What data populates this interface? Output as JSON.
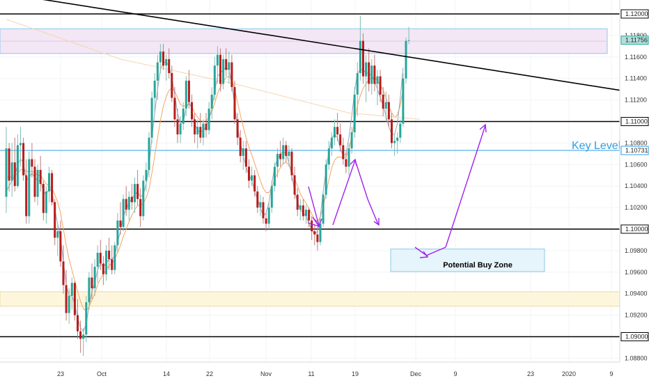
{
  "chart_data": {
    "type": "candlestick",
    "title": "",
    "y_axis": {
      "range": [
        1.0875,
        1.1208
      ],
      "tick_labels": [
        "1.12000",
        "1.11800",
        "1.11600",
        "1.11400",
        "1.11200",
        "1.11000",
        "1.10800",
        "1.10600",
        "1.10400",
        "1.10200",
        "1.10000",
        "1.09800",
        "1.09600",
        "1.09400",
        "1.09200",
        "1.09000",
        "1.08800"
      ]
    },
    "x_axis": {
      "tick_labels": [
        "23",
        "Oct",
        "14",
        "22",
        "Nov",
        "11",
        "19",
        "Dec",
        "9",
        "23",
        "2020",
        "9"
      ]
    },
    "horizontal_levels": [
      {
        "price": 1.12,
        "label": "1.12000",
        "color": "#000000"
      },
      {
        "price": 1.11,
        "label": "1.11000",
        "color": "#000000"
      },
      {
        "price": 1.1,
        "label": "1.10000",
        "color": "#000000"
      },
      {
        "price": 1.09,
        "label": "1.09000",
        "color": "#000000"
      },
      {
        "price": 1.10731,
        "label": "1.10731",
        "color": "#2f9ee6"
      }
    ],
    "current_price": {
      "price": 1.11756,
      "label": "1.11756",
      "color": "#26a69a"
    },
    "annotations": {
      "key_level": "Key Level",
      "buy_zone": "Potential Buy Zone"
    },
    "zones": [
      {
        "name": "resistance-zone",
        "top": 1.11862,
        "bottom": 1.11632,
        "color": "#f3e6f5"
      },
      {
        "name": "support-zone",
        "top": 1.09418,
        "bottom": 1.09283,
        "color": "#fdf6dc"
      },
      {
        "name": "potential-buy-zone",
        "top": 1.09815,
        "bottom": 1.09605,
        "color": "#e6f4fb"
      }
    ],
    "trendline": {
      "from": [
        0,
        1.12111
      ],
      "to": [
        186,
        1.11291
      ]
    },
    "candles": [
      [
        1.103,
        1.1095,
        1.1015,
        1.1075
      ],
      [
        1.1075,
        1.108,
        1.1035,
        1.1045
      ],
      [
        1.1045,
        1.108,
        1.103,
        1.1062
      ],
      [
        1.1062,
        1.1085,
        1.1035,
        1.104
      ],
      [
        1.104,
        1.1088,
        1.1038,
        1.1078
      ],
      [
        1.1078,
        1.1095,
        1.1058,
        1.108
      ],
      [
        1.108,
        1.1085,
        1.1045,
        1.105
      ],
      [
        1.105,
        1.1065,
        1.1005,
        1.1012
      ],
      [
        1.1012,
        1.1072,
        1.1005,
        1.1065
      ],
      [
        1.1065,
        1.108,
        1.1048,
        1.1058
      ],
      [
        1.1058,
        1.1065,
        1.1025,
        1.103
      ],
      [
        1.103,
        1.106,
        1.1022,
        1.1055
      ],
      [
        1.1055,
        1.1068,
        1.1035,
        1.1042
      ],
      [
        1.1042,
        1.1045,
        1.1008,
        1.1015
      ],
      [
        1.1015,
        1.104,
        1.1005,
        1.1035
      ],
      [
        1.1035,
        1.1058,
        1.1025,
        1.1052
      ],
      [
        1.1052,
        1.1055,
        1.1022,
        1.1025
      ],
      [
        1.1025,
        1.1028,
        1.0985,
        1.0992
      ],
      [
        1.0992,
        1.1005,
        1.0975,
        1.0998
      ],
      [
        1.0998,
        1.1008,
        1.0965,
        1.097
      ],
      [
        1.097,
        1.0985,
        1.094,
        1.0948
      ],
      [
        1.0948,
        1.0962,
        1.0915,
        1.0922
      ],
      [
        1.0922,
        1.0945,
        1.0912,
        1.0938
      ],
      [
        1.0938,
        1.0955,
        1.0925,
        1.095
      ],
      [
        1.095,
        1.0952,
        1.0915,
        1.092
      ],
      [
        1.092,
        1.0935,
        1.0898,
        1.0905
      ],
      [
        1.0905,
        1.0915,
        1.0885,
        1.0898
      ],
      [
        1.0898,
        1.0908,
        1.0882,
        1.0902
      ],
      [
        1.0902,
        1.0938,
        1.0895,
        1.0932
      ],
      [
        1.0932,
        1.096,
        1.0925,
        1.0955
      ],
      [
        1.0955,
        1.0968,
        1.0935,
        1.0945
      ],
      [
        1.0945,
        1.0972,
        1.0938,
        1.0965
      ],
      [
        1.0965,
        1.0985,
        1.095,
        1.0978
      ],
      [
        1.0978,
        1.099,
        1.0962,
        1.0968
      ],
      [
        1.0968,
        1.0975,
        1.0948,
        1.0958
      ],
      [
        1.0958,
        1.0985,
        1.0952,
        1.098
      ],
      [
        1.098,
        1.0992,
        1.0962,
        1.0972
      ],
      [
        1.0972,
        1.0985,
        1.0958,
        1.0962
      ],
      [
        1.0962,
        1.0988,
        1.0958,
        1.0985
      ],
      [
        1.0985,
        1.1015,
        1.0978,
        1.1008
      ],
      [
        1.1008,
        1.1025,
        1.0995,
        1.1002
      ],
      [
        1.1002,
        1.1032,
        1.0998,
        1.1028
      ],
      [
        1.1028,
        1.104,
        1.1012,
        1.1018
      ],
      [
        1.1018,
        1.1035,
        1.1008,
        1.103
      ],
      [
        1.103,
        1.1042,
        1.1018,
        1.1025
      ],
      [
        1.1025,
        1.1048,
        1.1015,
        1.1042
      ],
      [
        1.1042,
        1.1055,
        1.1022,
        1.1028
      ],
      [
        1.1028,
        1.1038,
        1.1002,
        1.1012
      ],
      [
        1.1012,
        1.105,
        1.1008,
        1.1045
      ],
      [
        1.1045,
        1.1062,
        1.1035,
        1.1055
      ],
      [
        1.1055,
        1.109,
        1.1048,
        1.1085
      ],
      [
        1.1085,
        1.1128,
        1.108,
        1.1122
      ],
      [
        1.1122,
        1.1145,
        1.1108,
        1.1138
      ],
      [
        1.1138,
        1.1162,
        1.112,
        1.1155
      ],
      [
        1.1155,
        1.1172,
        1.1145,
        1.1165
      ],
      [
        1.1165,
        1.1172,
        1.1148,
        1.1152
      ],
      [
        1.1152,
        1.1162,
        1.1138,
        1.1158
      ],
      [
        1.1158,
        1.1168,
        1.114,
        1.1145
      ],
      [
        1.1145,
        1.1152,
        1.1118,
        1.1122
      ],
      [
        1.1122,
        1.1132,
        1.1095,
        1.1102
      ],
      [
        1.1102,
        1.1112,
        1.108,
        1.1088
      ],
      [
        1.1088,
        1.1105,
        1.108,
        1.1098
      ],
      [
        1.1098,
        1.1118,
        1.1092,
        1.1112
      ],
      [
        1.1112,
        1.1142,
        1.1105,
        1.1138
      ],
      [
        1.1138,
        1.1148,
        1.1112,
        1.1118
      ],
      [
        1.1118,
        1.1125,
        1.1095,
        1.1102
      ],
      [
        1.1102,
        1.1108,
        1.108,
        1.1088
      ],
      [
        1.1088,
        1.1102,
        1.1075,
        1.1095
      ],
      [
        1.1095,
        1.1108,
        1.108,
        1.1085
      ],
      [
        1.1085,
        1.1102,
        1.1078,
        1.1098
      ],
      [
        1.1098,
        1.1108,
        1.1085,
        1.1092
      ],
      [
        1.1092,
        1.1118,
        1.1088,
        1.1112
      ],
      [
        1.1112,
        1.1132,
        1.1102,
        1.1125
      ],
      [
        1.1125,
        1.116,
        1.112,
        1.1152
      ],
      [
        1.1152,
        1.117,
        1.1135,
        1.1162
      ],
      [
        1.1162,
        1.1168,
        1.1128,
        1.1135
      ],
      [
        1.1135,
        1.1162,
        1.113,
        1.1158
      ],
      [
        1.1158,
        1.1168,
        1.1142,
        1.1148
      ],
      [
        1.1148,
        1.1165,
        1.1135,
        1.1155
      ],
      [
        1.1155,
        1.1162,
        1.1128,
        1.1132
      ],
      [
        1.1132,
        1.1138,
        1.1098,
        1.1102
      ],
      [
        1.1102,
        1.1108,
        1.1078,
        1.1085
      ],
      [
        1.1085,
        1.1092,
        1.1062,
        1.1068
      ],
      [
        1.1068,
        1.1082,
        1.1055,
        1.1075
      ],
      [
        1.1075,
        1.1082,
        1.1052,
        1.1058
      ],
      [
        1.1058,
        1.1065,
        1.1038,
        1.1045
      ],
      [
        1.1045,
        1.1058,
        1.104,
        1.105
      ],
      [
        1.105,
        1.1055,
        1.103,
        1.1035
      ],
      [
        1.1035,
        1.104,
        1.1015,
        1.102
      ],
      [
        1.102,
        1.1032,
        1.1012,
        1.1025
      ],
      [
        1.1025,
        1.103,
        1.1005,
        1.101
      ],
      [
        1.101,
        1.1015,
        1.0998,
        1.1005
      ],
      [
        1.1005,
        1.1025,
        1.1,
        1.102
      ],
      [
        1.102,
        1.1045,
        1.1015,
        1.104
      ],
      [
        1.104,
        1.1062,
        1.1035,
        1.1058
      ],
      [
        1.1058,
        1.1075,
        1.1048,
        1.107
      ],
      [
        1.107,
        1.1082,
        1.1058,
        1.1065
      ],
      [
        1.1065,
        1.1085,
        1.106,
        1.1078
      ],
      [
        1.1078,
        1.1082,
        1.1062,
        1.1068
      ],
      [
        1.1068,
        1.1078,
        1.1058,
        1.1072
      ],
      [
        1.1072,
        1.1075,
        1.1045,
        1.105
      ],
      [
        1.105,
        1.1058,
        1.1028,
        1.1032
      ],
      [
        1.1032,
        1.1038,
        1.1012,
        1.1018
      ],
      [
        1.1018,
        1.1028,
        1.1008,
        1.1022
      ],
      [
        1.1022,
        1.1028,
        1.1008,
        1.1012
      ],
      [
        1.1012,
        1.1022,
        1.1005,
        1.1018
      ],
      [
        1.1018,
        1.102,
        1.1002,
        1.1008
      ],
      [
        1.1008,
        1.1012,
        1.099,
        1.0998
      ],
      [
        1.0998,
        1.1005,
        1.0985,
        1.0995
      ],
      [
        1.0995,
        1.1002,
        1.098,
        1.0988
      ],
      [
        1.0988,
        1.101,
        1.0985,
        1.1005
      ],
      [
        1.1005,
        1.1035,
        1.1002,
        1.1032
      ],
      [
        1.1032,
        1.1065,
        1.1028,
        1.106
      ],
      [
        1.106,
        1.1082,
        1.1055,
        1.1075
      ],
      [
        1.1075,
        1.109,
        1.1068,
        1.1085
      ],
      [
        1.1085,
        1.1102,
        1.1078,
        1.1095
      ],
      [
        1.1095,
        1.1108,
        1.1082,
        1.1088
      ],
      [
        1.1088,
        1.1098,
        1.1072,
        1.1078
      ],
      [
        1.1078,
        1.1085,
        1.106,
        1.1065
      ],
      [
        1.1065,
        1.1072,
        1.1052,
        1.1058
      ],
      [
        1.1058,
        1.108,
        1.105,
        1.1075
      ],
      [
        1.1075,
        1.1095,
        1.107,
        1.109
      ],
      [
        1.109,
        1.1132,
        1.1085,
        1.1125
      ],
      [
        1.1125,
        1.1155,
        1.1105,
        1.1145
      ],
      [
        1.1145,
        1.1198,
        1.1138,
        1.1175
      ],
      [
        1.1175,
        1.1182,
        1.1135,
        1.1142
      ],
      [
        1.1142,
        1.1162,
        1.1118,
        1.1155
      ],
      [
        1.1155,
        1.1168,
        1.1128,
        1.1135
      ],
      [
        1.1135,
        1.1158,
        1.1125,
        1.1152
      ],
      [
        1.1152,
        1.1162,
        1.1128,
        1.1135
      ],
      [
        1.1135,
        1.1148,
        1.1115,
        1.1142
      ],
      [
        1.1142,
        1.1148,
        1.1118,
        1.1125
      ],
      [
        1.1125,
        1.1132,
        1.1105,
        1.1112
      ],
      [
        1.1112,
        1.1128,
        1.11,
        1.1118
      ],
      [
        1.1118,
        1.1125,
        1.1095,
        1.1102
      ],
      [
        1.1102,
        1.1108,
        1.1075,
        1.108
      ],
      [
        1.108,
        1.1088,
        1.1068,
        1.1082
      ],
      [
        1.1082,
        1.109,
        1.107,
        1.1085
      ],
      [
        1.1085,
        1.1102,
        1.108,
        1.1098
      ],
      [
        1.1098,
        1.1145,
        1.1095,
        1.114
      ],
      [
        1.114,
        1.1178,
        1.1135,
        1.1175
      ],
      [
        1.1175,
        1.1188,
        1.1172,
        1.11756
      ]
    ],
    "sma_short": [
      1.1035,
      1.104,
      1.1045,
      1.105,
      1.106,
      1.1065,
      1.1062,
      1.1045,
      1.1048,
      1.1052,
      1.1048,
      1.1045,
      1.1045,
      1.1035,
      1.1032,
      1.1038,
      1.1035,
      1.1018,
      1.1005,
      1.0992,
      1.097,
      1.0948,
      1.0938,
      1.0938,
      1.093,
      1.0918,
      1.0908,
      1.0905,
      1.0912,
      1.0928,
      1.0942,
      1.095,
      1.0962,
      1.0968,
      1.0965,
      1.0968,
      1.0972,
      1.0972,
      1.0975,
      1.0988,
      1.0998,
      1.1012,
      1.1018,
      1.1025,
      1.1028,
      1.1032,
      1.1035,
      1.103,
      1.1032,
      1.1042,
      1.1058,
      1.1085,
      1.1108,
      1.113,
      1.1148,
      1.1155,
      1.1155,
      1.1152,
      1.114,
      1.1125,
      1.1108,
      1.1098,
      1.11,
      1.1112,
      1.1118,
      1.1112,
      1.1098,
      1.1092,
      1.109,
      1.1092,
      1.1095,
      1.1102,
      1.1112,
      1.1128,
      1.1142,
      1.1145,
      1.1148,
      1.115,
      1.1148,
      1.1135,
      1.1115,
      1.1095,
      1.108,
      1.1068,
      1.1058,
      1.105,
      1.1045,
      1.1035,
      1.1028,
      1.102,
      1.1012,
      1.1015,
      1.1025,
      1.1042,
      1.1058,
      1.1065,
      1.107,
      1.1072,
      1.107,
      1.1062,
      1.105,
      1.1035,
      1.1025,
      1.1018,
      1.1015,
      1.1012,
      1.1005,
      1.1,
      1.0995,
      1.0998,
      1.1012,
      1.1035,
      1.1055,
      1.1072,
      1.1085,
      1.1088,
      1.1085,
      1.1075,
      1.1068,
      1.107,
      1.1085,
      1.1105,
      1.1128,
      1.1145,
      1.1148,
      1.1148,
      1.1145,
      1.1145,
      1.1142,
      1.1138,
      1.113,
      1.1122,
      1.1115,
      1.1105,
      1.1095,
      1.1088,
      1.1088,
      1.1098,
      1.1122,
      1.115
    ],
    "sma_medium": [
      1.1048,
      1.1048,
      1.1049,
      1.105,
      1.1052,
      1.1055,
      1.1056,
      1.1054,
      1.1053,
      1.1054,
      1.1052,
      1.105,
      1.105,
      1.1046,
      1.1042,
      1.104,
      1.1038,
      1.1032,
      1.1025,
      1.1015,
      1.1,
      1.0985,
      1.0972,
      1.0962,
      1.0952,
      1.0942,
      1.0933,
      1.0926,
      1.0924,
      1.0928,
      1.0934,
      1.094,
      1.0948,
      1.0954,
      1.0958,
      1.0962,
      1.0966,
      1.0968,
      1.0972,
      1.0978,
      1.0985,
      1.0993,
      1.1,
      1.1007,
      1.1013,
      1.1018,
      1.1022,
      1.1022,
      1.1024,
      1.1029,
      1.1037,
      1.1052,
      1.1068,
      1.1085,
      1.1101,
      1.1114,
      1.1123,
      1.1129,
      1.1131,
      1.1128,
      1.1122,
      1.1116,
      1.1114,
      1.1115,
      1.1116,
      1.1114,
      1.1108,
      1.1104,
      1.1101,
      1.11,
      1.1101,
      1.1104,
      1.1109,
      1.1117,
      1.1126,
      1.1132,
      1.1137,
      1.1141,
      1.1142,
      1.1139,
      1.113,
      1.1118,
      1.1106,
      1.1095,
      1.1085,
      1.1076,
      1.1069,
      1.1061,
      1.1053,
      1.1045,
      1.1038,
      1.1034,
      1.1034,
      1.1039,
      1.1046,
      1.1052,
      1.1057,
      1.1061,
      1.1062,
      1.106,
      1.1055,
      1.1047,
      1.104,
      1.1033,
      1.1028,
      1.1024,
      1.1019,
      1.1014,
      1.1009,
      1.1007,
      1.1011,
      1.1021,
      1.1033,
      1.1046,
      1.1057,
      1.1064,
      1.1067,
      1.1067,
      1.1066,
      1.1067,
      1.1074,
      1.1086,
      1.1101,
      1.1115,
      1.1124,
      1.1131,
      1.1135,
      1.1139,
      1.1141,
      1.1141,
      1.1138,
      1.1134,
      1.1129,
      1.1122,
      1.1114,
      1.1108,
      1.1104,
      1.1106,
      1.1115,
      1.113
    ],
    "sma_long": {
      "from": [
        0,
        1.1195
      ],
      "via": [
        [
          40,
          1.1158
        ],
        [
          80,
          1.1135
        ],
        [
          120,
          1.1108
        ],
        [
          145,
          1.1102
        ]
      ]
    }
  }
}
